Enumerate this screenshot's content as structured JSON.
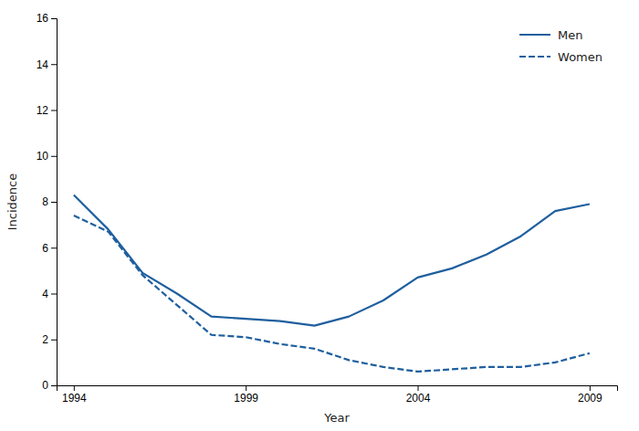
{
  "chart_data": {
    "type": "line",
    "x": [
      1994,
      1995,
      1996,
      1997,
      1998,
      1999,
      2000,
      2001,
      2002,
      2003,
      2004,
      2005,
      2006,
      2007,
      2008,
      2009
    ],
    "series": [
      {
        "name": "Men",
        "color": "#1F5F9E",
        "line_style": "solid",
        "values": [
          8.3,
          6.8,
          4.9,
          4.0,
          3.0,
          2.9,
          2.8,
          2.6,
          3.0,
          3.7,
          4.7,
          5.1,
          5.7,
          6.5,
          7.6,
          7.9
        ]
      },
      {
        "name": "Women",
        "color": "#1F5F9E",
        "line_style": "dashed",
        "values": [
          7.4,
          6.7,
          4.8,
          3.5,
          2.2,
          2.1,
          1.8,
          1.6,
          1.1,
          0.8,
          0.6,
          0.7,
          0.8,
          0.8,
          1.0,
          1.4
        ]
      }
    ],
    "xlabel": "Year",
    "ylabel": "Incidence",
    "xlim": [
      1993.5,
      2009.8
    ],
    "xticks": [
      1994,
      1999,
      2004,
      2009
    ],
    "ylim": [
      0,
      16
    ],
    "yticks": [
      0,
      2,
      4,
      6,
      8,
      10,
      12,
      14,
      16
    ],
    "grid": false,
    "legend": "upper right"
  }
}
